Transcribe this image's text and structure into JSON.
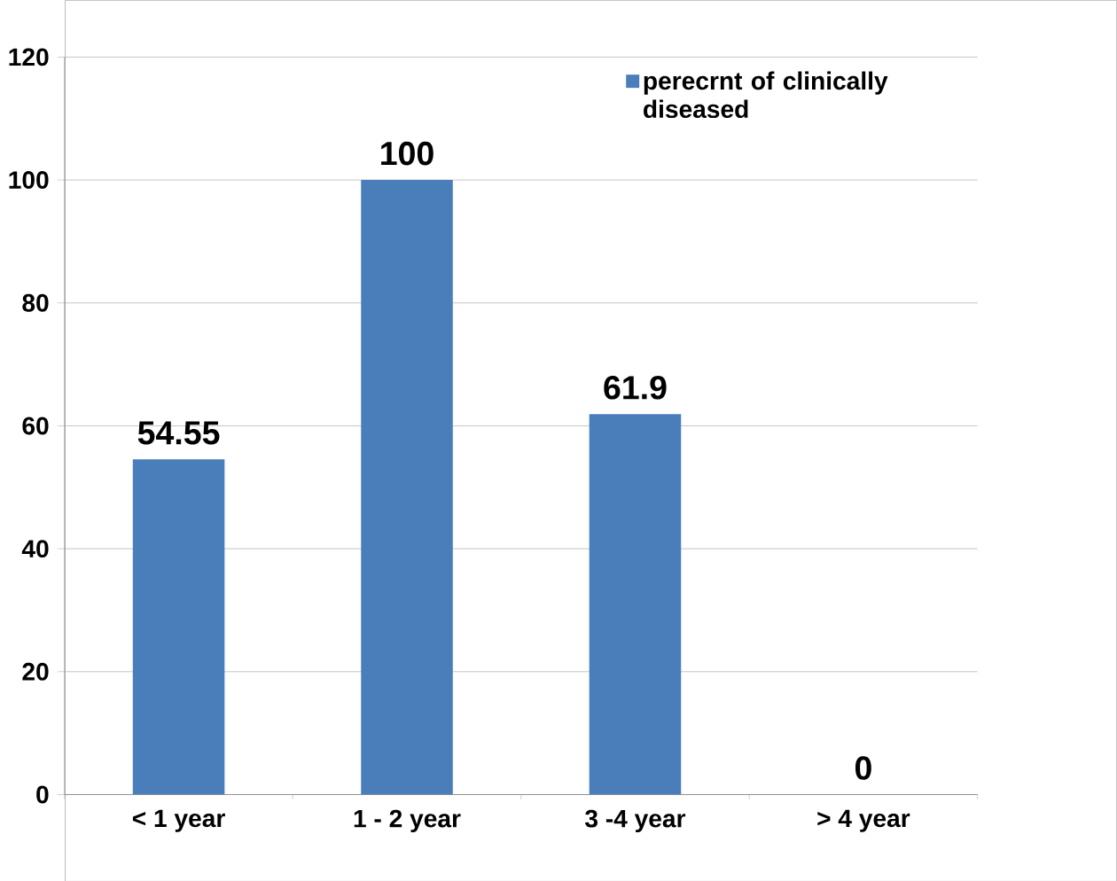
{
  "chart_data": {
    "type": "bar",
    "categories": [
      "< 1 year",
      "1 - 2 year",
      "3 -4 year",
      "> 4 year"
    ],
    "series": [
      {
        "name": "perecrnt of clinically diseased",
        "color": "#4a7ebb",
        "values": [
          54.55,
          100,
          61.9,
          0
        ]
      }
    ],
    "ylim": [
      0,
      120
    ],
    "yticks": [
      0,
      20,
      40,
      60,
      80,
      100,
      120
    ],
    "grid": "y",
    "legend": "top right",
    "data_labels": true
  }
}
